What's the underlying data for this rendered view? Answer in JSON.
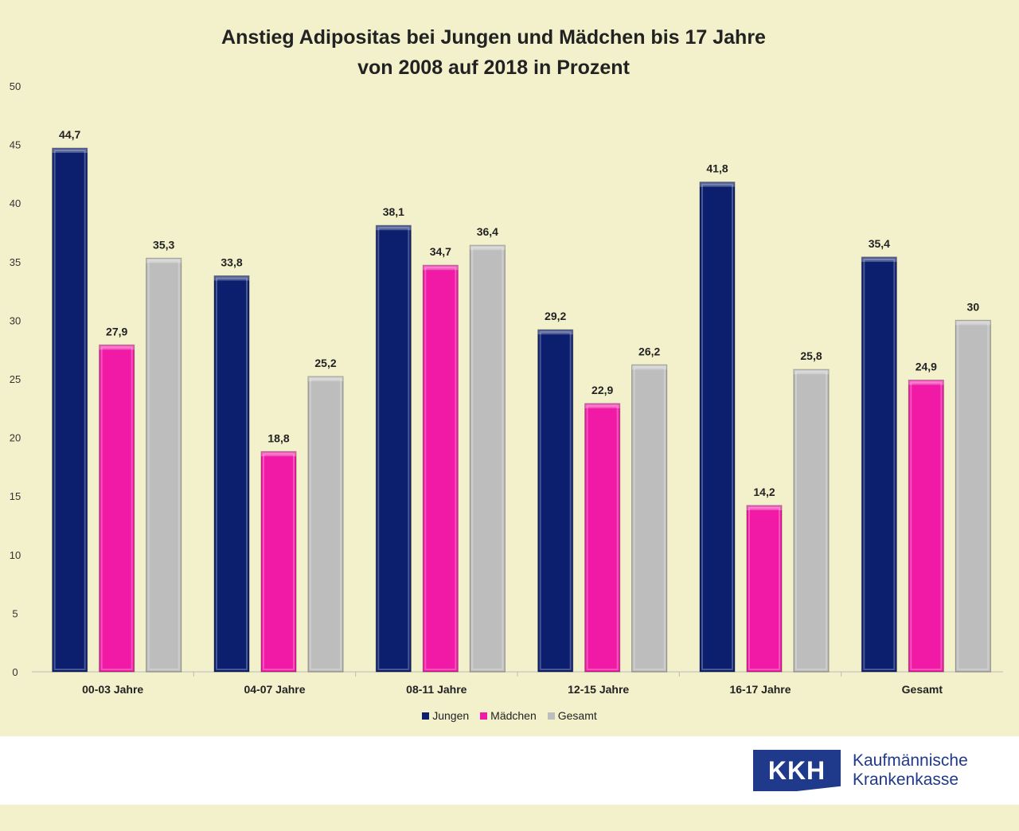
{
  "chart_data": {
    "type": "bar",
    "title": "Anstieg Adipositas bei Jungen und Mädchen bis 17 Jahre",
    "subtitle": "von 2008 auf 2018 in Prozent",
    "xlabel": "",
    "ylabel": "",
    "ylim": [
      0,
      50
    ],
    "yticks": [
      "0",
      "5",
      "10",
      "15",
      "20",
      "25",
      "30",
      "35",
      "40",
      "45",
      "50"
    ],
    "grid": false,
    "legend_position": "bottom",
    "categories": [
      "00-03 Jahre",
      "04-07 Jahre",
      "08-11 Jahre",
      "12-15 Jahre",
      "16-17 Jahre",
      "Gesamt"
    ],
    "series": [
      {
        "name": "Jungen",
        "color": "#0c1f6e",
        "values": [
          44.7,
          33.8,
          38.1,
          29.2,
          41.8,
          35.4
        ],
        "labels": [
          "44,7",
          "33,8",
          "38,1",
          "29,2",
          "41,8",
          "35,4"
        ]
      },
      {
        "name": "Mädchen",
        "color": "#f01aa6",
        "values": [
          27.9,
          18.8,
          34.7,
          22.9,
          14.2,
          24.9
        ],
        "labels": [
          "27,9",
          "18,8",
          "34,7",
          "22,9",
          "14,2",
          "24,9"
        ]
      },
      {
        "name": "Gesamt",
        "color": "#bdbdbd",
        "values": [
          35.3,
          25.2,
          36.4,
          26.2,
          25.8,
          30
        ],
        "labels": [
          "35,3",
          "25,2",
          "36,4",
          "26,2",
          "25,8",
          "30"
        ]
      }
    ]
  },
  "logo": {
    "mark": "KKH",
    "line1": "Kaufmännische",
    "line2": "Krankenkasse",
    "color": "#1f3a8a"
  }
}
